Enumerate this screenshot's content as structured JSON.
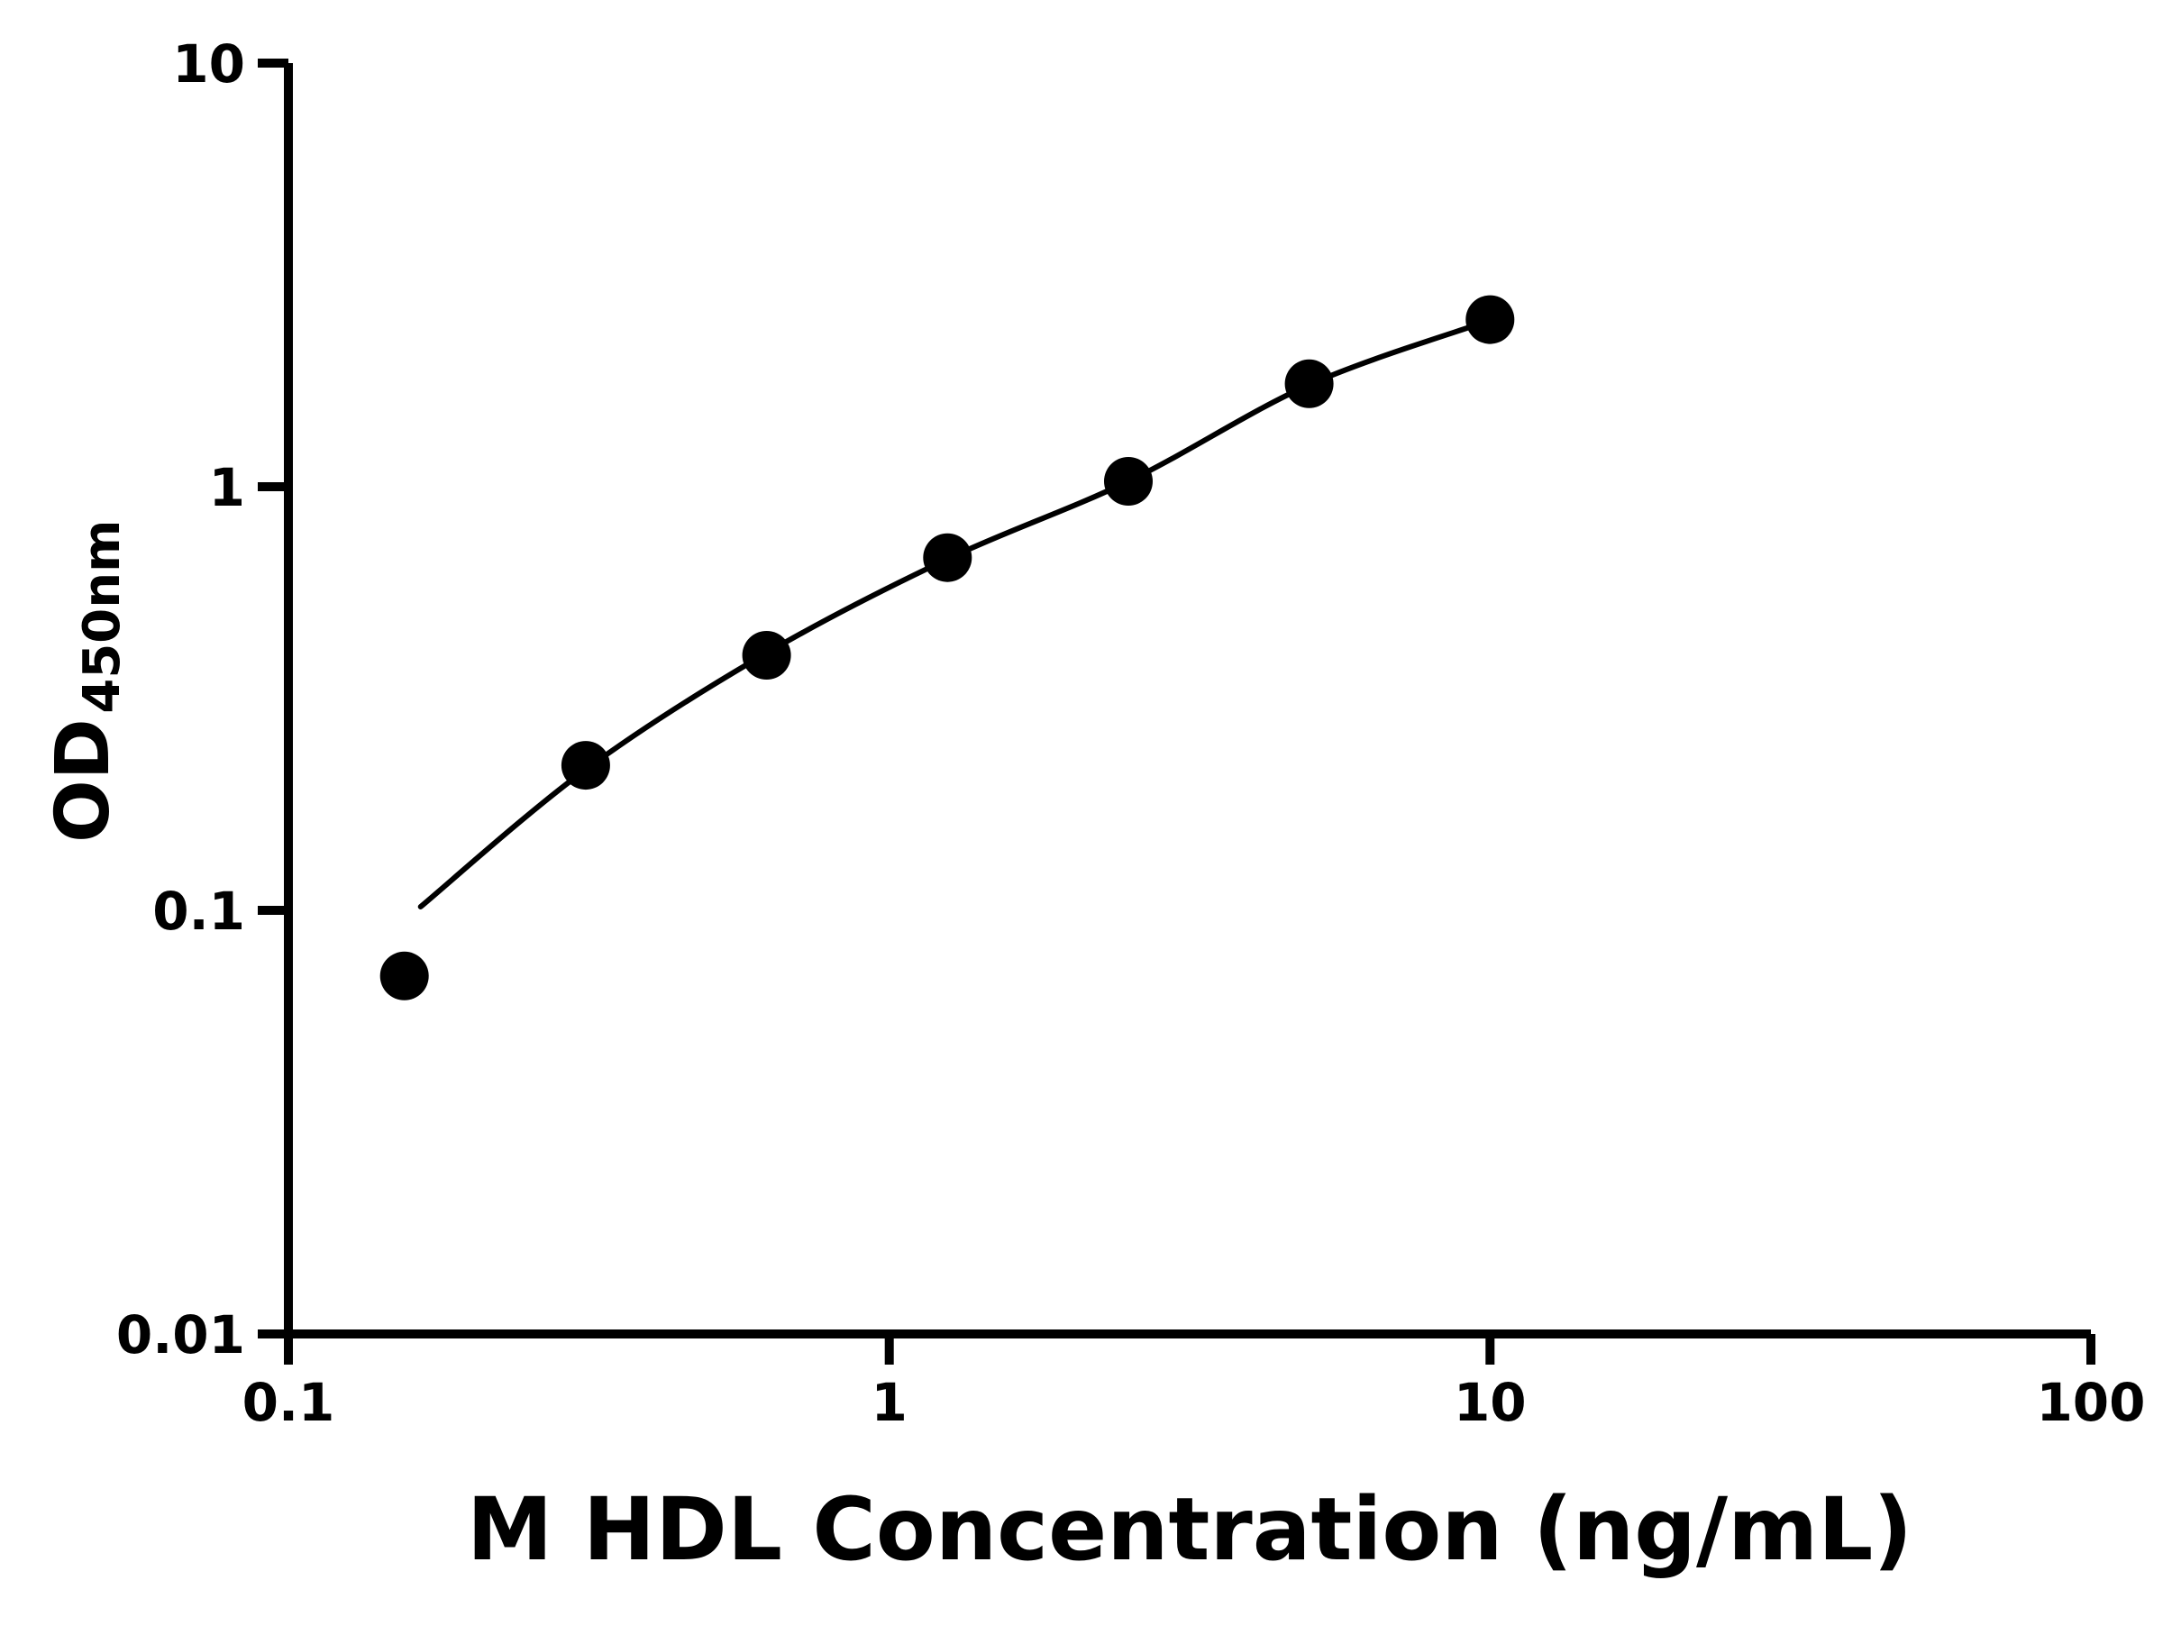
{
  "chart_data": {
    "type": "scatter",
    "title": "",
    "xlabel": "M HDL Concentration (ng/mL)",
    "ylabel": "OD",
    "ylabel_subscript": "450nm",
    "x_scale": "log",
    "y_scale": "log",
    "xlim": [
      0.1,
      100
    ],
    "ylim": [
      0.01,
      10
    ],
    "x_ticks": [
      0.1,
      1,
      10,
      100
    ],
    "x_tick_labels": [
      "0.1",
      "1",
      "10",
      "100"
    ],
    "y_ticks": [
      0.01,
      0.1,
      1,
      10
    ],
    "y_tick_labels": [
      "0.01",
      "0.1",
      "1",
      "10"
    ],
    "grid": false,
    "legend": false,
    "marker_color": "#000000",
    "line_color": "#000000",
    "axis_color": "#000000",
    "points": [
      {
        "x": 0.156,
        "y": 0.07
      },
      {
        "x": 0.3125,
        "y": 0.22
      },
      {
        "x": 0.625,
        "y": 0.4
      },
      {
        "x": 1.25,
        "y": 0.68
      },
      {
        "x": 2.5,
        "y": 1.03
      },
      {
        "x": 5,
        "y": 1.75
      },
      {
        "x": 10,
        "y": 2.48
      }
    ],
    "fit_curve": [
      {
        "x": 0.166,
        "y": 0.102
      },
      {
        "x": 0.3125,
        "y": 0.215
      },
      {
        "x": 0.625,
        "y": 0.405
      },
      {
        "x": 1.25,
        "y": 0.675
      },
      {
        "x": 2.5,
        "y": 1.03
      },
      {
        "x": 5,
        "y": 1.74
      },
      {
        "x": 10,
        "y": 2.47
      }
    ]
  }
}
